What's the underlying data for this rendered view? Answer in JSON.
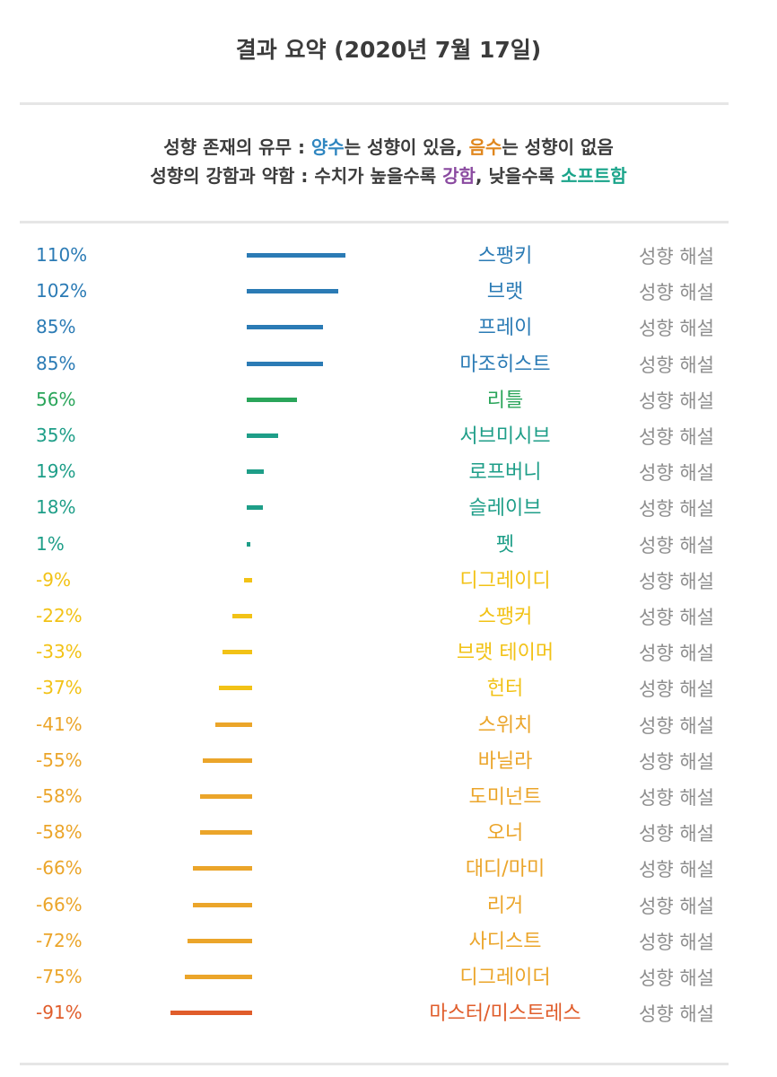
{
  "title": "결과 요약 (2020년 7월 17일)",
  "legend": {
    "line1": [
      {
        "text": "성향 존재의 유무 : ",
        "color": "#3c3c3c"
      },
      {
        "text": "양수",
        "color": "#2f86c0"
      },
      {
        "text": "는 성향이 있음, ",
        "color": "#3c3c3c"
      },
      {
        "text": "음수",
        "color": "#e0871e"
      },
      {
        "text": "는 성향이 없음",
        "color": "#3c3c3c"
      }
    ],
    "line2": [
      {
        "text": "성향의 강함과 약함 : 수치가 높을수록 ",
        "color": "#3c3c3c"
      },
      {
        "text": "강함",
        "color": "#8a4aa0"
      },
      {
        "text": ", 낮을수록 ",
        "color": "#3c3c3c"
      },
      {
        "text": "소프트함",
        "color": "#1aa48a"
      }
    ]
  },
  "link_label": "성향 해설",
  "chart_data": {
    "type": "bar",
    "orientation": "horizontal",
    "categories": [
      "스팽키",
      "브랫",
      "프레이",
      "마조히스트",
      "리틀",
      "서브미시브",
      "로프버니",
      "슬레이브",
      "펫",
      "디그레이디",
      "스팽커",
      "브랫 테이머",
      "헌터",
      "스위치",
      "바닐라",
      "도미넌트",
      "오너",
      "대디/마미",
      "리거",
      "사디스트",
      "디그레이더",
      "마스터/미스트레스"
    ],
    "values": [
      110,
      102,
      85,
      85,
      56,
      35,
      19,
      18,
      1,
      -9,
      -22,
      -33,
      -37,
      -41,
      -55,
      -58,
      -58,
      -66,
      -66,
      -72,
      -75,
      -91
    ],
    "labels": [
      "110%",
      "102%",
      "85%",
      "85%",
      "56%",
      "35%",
      "19%",
      "18%",
      "1%",
      "-9%",
      "-22%",
      "-33%",
      "-37%",
      "-41%",
      "-55%",
      "-58%",
      "-58%",
      "-66%",
      "-66%",
      "-72%",
      "-75%",
      "-91%"
    ],
    "colors": [
      "#2b7bb5",
      "#2b7bb5",
      "#2b7bb5",
      "#2b7bb5",
      "#2aa55a",
      "#1e9e88",
      "#1e9e88",
      "#1e9e88",
      "#1e9e88",
      "#f2c216",
      "#f2c216",
      "#f2c216",
      "#f2c216",
      "#eba52a",
      "#eba52a",
      "#eba52a",
      "#eba52a",
      "#eba52a",
      "#eba52a",
      "#eba52a",
      "#eba52a",
      "#e05d2b"
    ],
    "title": "결과 요약 (2020년 7월 17일)",
    "xlabel": "",
    "ylabel": ""
  }
}
